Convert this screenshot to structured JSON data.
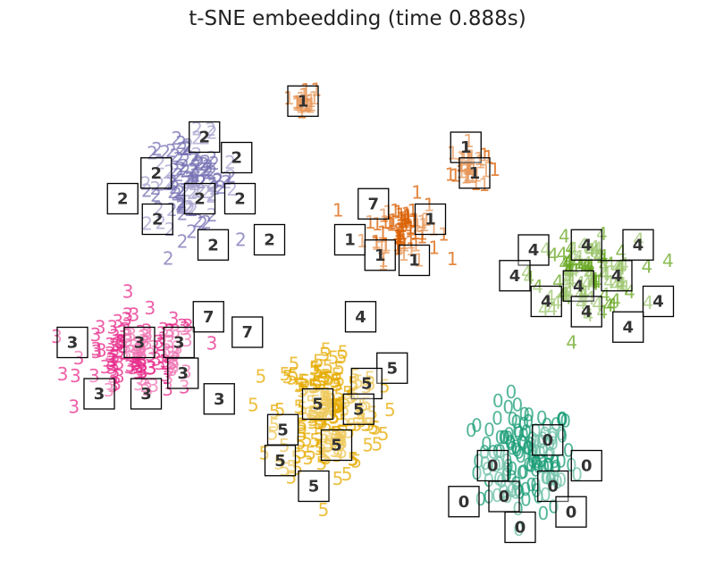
{
  "chart_data": {
    "type": "scatter",
    "title": "t-SNE embeedding (time 0.888s)",
    "xlabel": "",
    "ylabel": "",
    "xlim": [
      0,
      1
    ],
    "ylim": [
      0,
      1
    ],
    "grid": false,
    "axes_visible": false,
    "marker": "digit label text",
    "classes": [
      {
        "label": "0",
        "color": "#1b9e77",
        "center": [
          0.745,
          0.19
        ],
        "spread": [
          0.065,
          0.095
        ]
      },
      {
        "label": "1",
        "color": "#d95f02",
        "center": [
          0.56,
          0.64
        ],
        "spread": [
          0.05,
          0.055
        ]
      },
      {
        "label": "1",
        "color": "#d95f02",
        "center": [
          0.66,
          0.76
        ],
        "spread": [
          0.025,
          0.04
        ]
      },
      {
        "label": "1",
        "color": "#d95f02",
        "center": [
          0.415,
          0.89
        ],
        "spread": [
          0.015,
          0.02
        ]
      },
      {
        "label": "2",
        "color": "#7570b3",
        "center": [
          0.245,
          0.73
        ],
        "spread": [
          0.06,
          0.08
        ]
      },
      {
        "label": "3",
        "color": "#e7298a",
        "center": [
          0.17,
          0.39
        ],
        "spread": [
          0.08,
          0.07
        ]
      },
      {
        "label": "4",
        "color": "#66a61e",
        "center": [
          0.835,
          0.55
        ],
        "spread": [
          0.07,
          0.06
        ]
      },
      {
        "label": "5",
        "color": "#e6ab02",
        "center": [
          0.45,
          0.28
        ],
        "spread": [
          0.07,
          0.12
        ]
      }
    ],
    "thumbnails": [
      {
        "label": "1",
        "color": "#d95f02",
        "x": 0.412,
        "y": 0.89
      },
      {
        "label": "2",
        "color": "#7570b3",
        "x": 0.265,
        "y": 0.82
      },
      {
        "label": "2",
        "color": "#7570b3",
        "x": 0.313,
        "y": 0.78
      },
      {
        "label": "2",
        "color": "#7570b3",
        "x": 0.193,
        "y": 0.75
      },
      {
        "label": "2",
        "color": "#7570b3",
        "x": 0.143,
        "y": 0.7
      },
      {
        "label": "2",
        "color": "#7570b3",
        "x": 0.258,
        "y": 0.7
      },
      {
        "label": "2",
        "color": "#7570b3",
        "x": 0.318,
        "y": 0.7
      },
      {
        "label": "2",
        "color": "#7570b3",
        "x": 0.195,
        "y": 0.66
      },
      {
        "label": "2",
        "color": "#7570b3",
        "x": 0.278,
        "y": 0.61
      },
      {
        "label": "2",
        "color": "#7570b3",
        "x": 0.362,
        "y": 0.62
      },
      {
        "label": "1",
        "color": "#d95f02",
        "x": 0.655,
        "y": 0.8
      },
      {
        "label": "1",
        "color": "#d95f02",
        "x": 0.668,
        "y": 0.75
      },
      {
        "label": "7",
        "color": "#d95f02",
        "x": 0.517,
        "y": 0.69
      },
      {
        "label": "1",
        "color": "#d95f02",
        "x": 0.602,
        "y": 0.66
      },
      {
        "label": "1",
        "color": "#d95f02",
        "x": 0.482,
        "y": 0.62
      },
      {
        "label": "1",
        "color": "#d95f02",
        "x": 0.527,
        "y": 0.59
      },
      {
        "label": "1",
        "color": "#d95f02",
        "x": 0.578,
        "y": 0.58
      },
      {
        "label": "4",
        "color": "#66a61e",
        "x": 0.756,
        "y": 0.6
      },
      {
        "label": "4",
        "color": "#66a61e",
        "x": 0.835,
        "y": 0.61
      },
      {
        "label": "4",
        "color": "#66a61e",
        "x": 0.912,
        "y": 0.61
      },
      {
        "label": "4",
        "color": "#66a61e",
        "x": 0.728,
        "y": 0.55
      },
      {
        "label": "4",
        "color": "#66a61e",
        "x": 0.823,
        "y": 0.53
      },
      {
        "label": "4",
        "color": "#66a61e",
        "x": 0.88,
        "y": 0.55
      },
      {
        "label": "4",
        "color": "#66a61e",
        "x": 0.775,
        "y": 0.5
      },
      {
        "label": "4",
        "color": "#66a61e",
        "x": 0.835,
        "y": 0.48
      },
      {
        "label": "4",
        "color": "#66a61e",
        "x": 0.942,
        "y": 0.5
      },
      {
        "label": "4",
        "color": "#66a61e",
        "x": 0.897,
        "y": 0.45
      },
      {
        "label": "4",
        "color": "#66a61e",
        "x": 0.498,
        "y": 0.47
      },
      {
        "label": "7",
        "color": "#e7298a",
        "x": 0.271,
        "y": 0.47
      },
      {
        "label": "7",
        "color": "#e7298a",
        "x": 0.329,
        "y": 0.44
      },
      {
        "label": "3",
        "color": "#e7298a",
        "x": 0.068,
        "y": 0.42
      },
      {
        "label": "3",
        "color": "#e7298a",
        "x": 0.168,
        "y": 0.42
      },
      {
        "label": "3",
        "color": "#e7298a",
        "x": 0.227,
        "y": 0.42
      },
      {
        "label": "3",
        "color": "#e7298a",
        "x": 0.233,
        "y": 0.36
      },
      {
        "label": "3",
        "color": "#e7298a",
        "x": 0.108,
        "y": 0.32
      },
      {
        "label": "3",
        "color": "#e7298a",
        "x": 0.178,
        "y": 0.32
      },
      {
        "label": "3",
        "color": "#e7298a",
        "x": 0.287,
        "y": 0.31
      },
      {
        "label": "5",
        "color": "#e6ab02",
        "x": 0.545,
        "y": 0.37
      },
      {
        "label": "5",
        "color": "#e6ab02",
        "x": 0.507,
        "y": 0.34
      },
      {
        "label": "5",
        "color": "#e6ab02",
        "x": 0.434,
        "y": 0.3
      },
      {
        "label": "5",
        "color": "#e6ab02",
        "x": 0.495,
        "y": 0.29
      },
      {
        "label": "5",
        "color": "#e6ab02",
        "x": 0.382,
        "y": 0.25
      },
      {
        "label": "5",
        "color": "#e6ab02",
        "x": 0.462,
        "y": 0.22
      },
      {
        "label": "5",
        "color": "#e6ab02",
        "x": 0.378,
        "y": 0.19
      },
      {
        "label": "5",
        "color": "#e6ab02",
        "x": 0.428,
        "y": 0.14
      },
      {
        "label": "0",
        "color": "#1b9e77",
        "x": 0.777,
        "y": 0.23
      },
      {
        "label": "0",
        "color": "#1b9e77",
        "x": 0.695,
        "y": 0.18
      },
      {
        "label": "0",
        "color": "#1b9e77",
        "x": 0.835,
        "y": 0.18
      },
      {
        "label": "0",
        "color": "#1b9e77",
        "x": 0.785,
        "y": 0.14
      },
      {
        "label": "0",
        "color": "#1b9e77",
        "x": 0.652,
        "y": 0.11
      },
      {
        "label": "0",
        "color": "#1b9e77",
        "x": 0.712,
        "y": 0.12
      },
      {
        "label": "0",
        "color": "#1b9e77",
        "x": 0.812,
        "y": 0.09
      },
      {
        "label": "0",
        "color": "#1b9e77",
        "x": 0.736,
        "y": 0.06
      }
    ]
  }
}
